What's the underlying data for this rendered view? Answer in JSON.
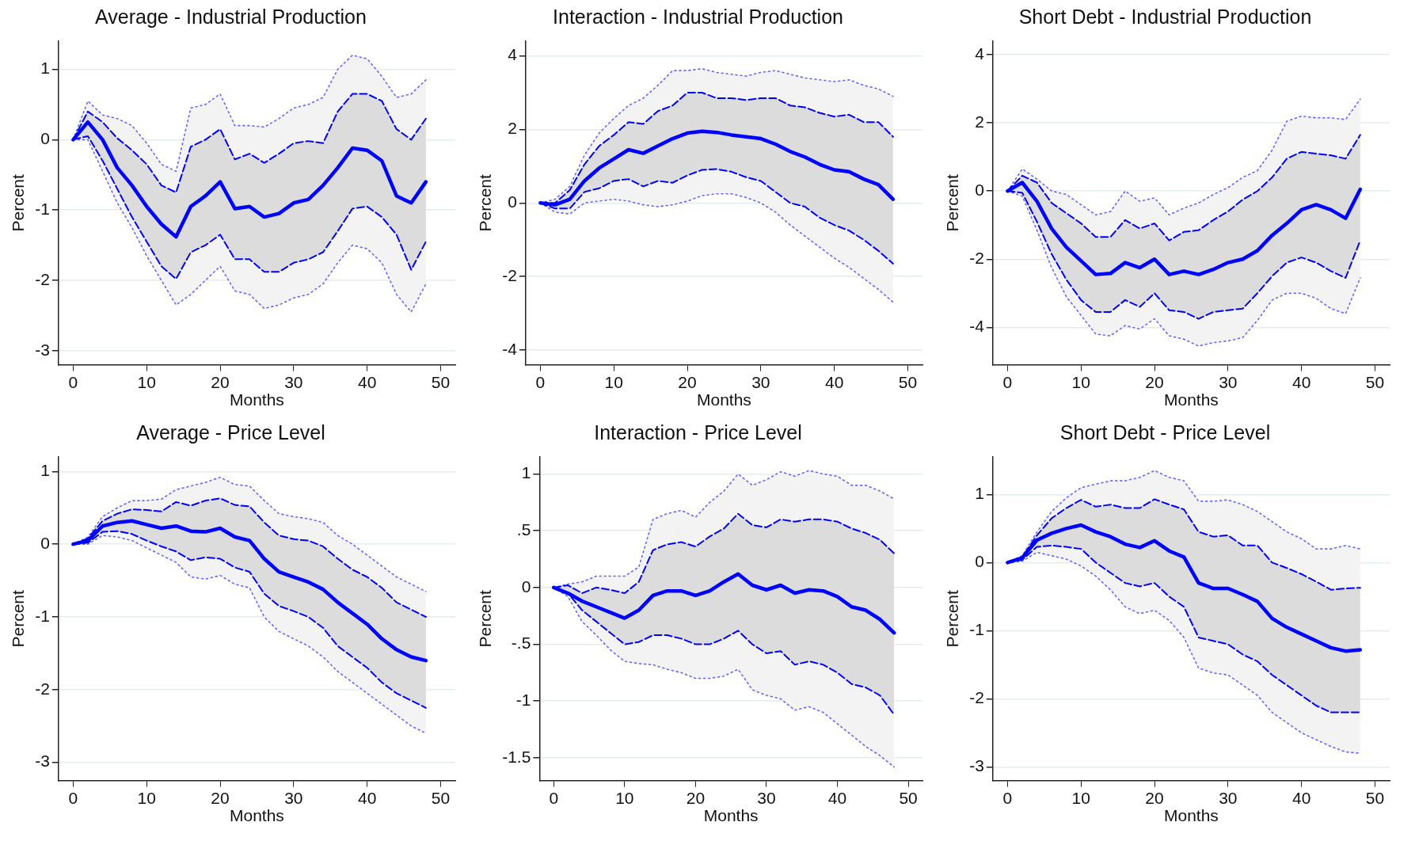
{
  "chart_data": [
    {
      "type": "line",
      "title": "Average - Industrial Production",
      "xlabel": "Months",
      "ylabel": "Percent",
      "grid": "y",
      "x": [
        0,
        2,
        4,
        6,
        8,
        10,
        12,
        14,
        16,
        18,
        20,
        22,
        24,
        26,
        28,
        30,
        32,
        34,
        36,
        38,
        40,
        42,
        44,
        46,
        48
      ],
      "xlim": [
        -2,
        52
      ],
      "xticks": [
        0,
        10,
        20,
        30,
        40,
        50
      ],
      "ylim": [
        -3.2,
        1.4
      ],
      "yticks": [
        -3,
        -2,
        -1,
        0,
        1
      ],
      "series": [
        {
          "color": "#0000ff",
          "line_style": "solid",
          "values": [
            0,
            0.25,
            0.0,
            -0.4,
            -0.65,
            -0.95,
            -1.2,
            -1.38,
            -0.95,
            -0.8,
            -0.6,
            -0.98,
            -0.95,
            -1.1,
            -1.05,
            -0.9,
            -0.85,
            -0.65,
            -0.4,
            -0.12,
            -0.15,
            -0.3,
            -0.8,
            -0.9,
            -0.6
          ],
          "lower": [
            0,
            0.05,
            -0.3,
            -0.7,
            -1.1,
            -1.45,
            -1.8,
            -1.98,
            -1.6,
            -1.5,
            -1.35,
            -1.7,
            -1.7,
            -1.88,
            -1.88,
            -1.75,
            -1.7,
            -1.6,
            -1.3,
            -0.98,
            -0.95,
            -1.1,
            -1.35,
            -1.85,
            -1.45
          ],
          "upper": [
            0,
            0.4,
            0.25,
            0.02,
            -0.15,
            -0.35,
            -0.65,
            -0.75,
            -0.1,
            0.0,
            0.15,
            -0.28,
            -0.2,
            -0.33,
            -0.2,
            -0.05,
            -0.02,
            -0.05,
            0.4,
            0.65,
            0.65,
            0.55,
            0.15,
            0.0,
            0.3
          ]
        },
        {
          "color": "#0000ff",
          "line_style": "dashed",
          "values": [
            0,
            0.4,
            0.25,
            0.02,
            -0.15,
            -0.35,
            -0.65,
            -0.75,
            -0.1,
            0.0,
            0.15,
            -0.28,
            -0.2,
            -0.33,
            -0.2,
            -0.05,
            -0.02,
            -0.05,
            0.4,
            0.65,
            0.65,
            0.55,
            0.15,
            0.0,
            0.3
          ]
        },
        {
          "color": "#0000ff",
          "line_style": "dashed",
          "values": [
            0,
            0.05,
            -0.3,
            -0.7,
            -1.1,
            -1.45,
            -1.8,
            -1.98,
            -1.6,
            -1.5,
            -1.35,
            -1.7,
            -1.7,
            -1.88,
            -1.88,
            -1.75,
            -1.7,
            -1.6,
            -1.3,
            -0.98,
            -0.95,
            -1.1,
            -1.35,
            -1.85,
            -1.45
          ]
        },
        {
          "color": "#6666ff",
          "line_style": "dotted",
          "values": [
            0,
            0.55,
            0.35,
            0.3,
            0.2,
            -0.05,
            -0.35,
            -0.45,
            0.45,
            0.5,
            0.65,
            0.2,
            0.2,
            0.18,
            0.3,
            0.45,
            0.5,
            0.6,
            1.0,
            1.2,
            1.15,
            0.9,
            0.6,
            0.65,
            0.85
          ],
          "lower": [
            0,
            0.0,
            -0.45,
            -0.9,
            -1.25,
            -1.65,
            -2.0,
            -2.35,
            -2.2,
            -2.0,
            -1.8,
            -2.15,
            -2.2,
            -2.4,
            -2.35,
            -2.25,
            -2.2,
            -2.05,
            -1.75,
            -1.5,
            -1.55,
            -1.75,
            -2.2,
            -2.45,
            -2.05
          ],
          "upper": [
            0,
            0.55,
            0.35,
            0.3,
            0.2,
            -0.05,
            -0.35,
            -0.45,
            0.45,
            0.5,
            0.65,
            0.2,
            0.2,
            0.18,
            0.3,
            0.45,
            0.5,
            0.6,
            1.0,
            1.2,
            1.15,
            0.9,
            0.6,
            0.65,
            0.85
          ]
        },
        {
          "color": "#6666ff",
          "line_style": "dotted",
          "values": [
            0,
            0.0,
            -0.45,
            -0.9,
            -1.25,
            -1.65,
            -2.0,
            -2.35,
            -2.2,
            -2.0,
            -1.8,
            -2.15,
            -2.2,
            -2.4,
            -2.35,
            -2.25,
            -2.2,
            -2.05,
            -1.75,
            -1.5,
            -1.55,
            -1.75,
            -2.2,
            -2.45,
            -2.05
          ]
        }
      ]
    },
    {
      "type": "line",
      "title": "Interaction - Industrial Production",
      "xlabel": "Months",
      "ylabel": "Percent",
      "grid": "y",
      "x": [
        0,
        2,
        4,
        6,
        8,
        10,
        12,
        14,
        16,
        18,
        20,
        22,
        24,
        26,
        28,
        30,
        32,
        34,
        36,
        38,
        40,
        42,
        44,
        46,
        48
      ],
      "xlim": [
        -2,
        52
      ],
      "xticks": [
        0,
        10,
        20,
        30,
        40,
        50
      ],
      "ylim": [
        -4.4,
        4.4
      ],
      "yticks": [
        -4,
        -2,
        0,
        2,
        4
      ],
      "series": [
        {
          "color": "#0000ff",
          "line_style": "solid",
          "values": [
            0,
            -0.05,
            0.1,
            0.6,
            0.95,
            1.2,
            1.45,
            1.35,
            1.55,
            1.75,
            1.9,
            1.95,
            1.92,
            1.85,
            1.8,
            1.75,
            1.6,
            1.4,
            1.25,
            1.05,
            0.9,
            0.85,
            0.65,
            0.5,
            0.1
          ],
          "lower": [
            0,
            -0.15,
            -0.15,
            0.3,
            0.4,
            0.6,
            0.65,
            0.45,
            0.6,
            0.55,
            0.75,
            0.9,
            0.92,
            0.85,
            0.7,
            0.6,
            0.3,
            0.0,
            -0.1,
            -0.4,
            -0.6,
            -0.75,
            -1.0,
            -1.3,
            -1.65
          ],
          "upper": [
            0,
            0.0,
            0.35,
            1.05,
            1.55,
            1.85,
            2.2,
            2.15,
            2.5,
            2.65,
            3.0,
            3.0,
            2.85,
            2.85,
            2.8,
            2.85,
            2.85,
            2.65,
            2.6,
            2.45,
            2.35,
            2.4,
            2.2,
            2.2,
            1.8
          ]
        },
        {
          "color": "#0000ff",
          "line_style": "dashed",
          "values": [
            0,
            0.0,
            0.35,
            1.05,
            1.55,
            1.85,
            2.2,
            2.15,
            2.5,
            2.65,
            3.0,
            3.0,
            2.85,
            2.85,
            2.8,
            2.85,
            2.85,
            2.65,
            2.6,
            2.45,
            2.35,
            2.4,
            2.2,
            2.2,
            1.8
          ]
        },
        {
          "color": "#0000ff",
          "line_style": "dashed",
          "values": [
            0,
            -0.15,
            -0.15,
            0.3,
            0.4,
            0.6,
            0.65,
            0.45,
            0.6,
            0.55,
            0.75,
            0.9,
            0.92,
            0.85,
            0.7,
            0.6,
            0.3,
            0.0,
            -0.1,
            -0.4,
            -0.6,
            -0.75,
            -1.0,
            -1.3,
            -1.65
          ]
        },
        {
          "color": "#6666ff",
          "line_style": "dotted",
          "values": [
            0,
            0.1,
            0.45,
            1.3,
            1.9,
            2.3,
            2.65,
            2.85,
            3.2,
            3.6,
            3.6,
            3.65,
            3.55,
            3.5,
            3.45,
            3.55,
            3.6,
            3.5,
            3.4,
            3.35,
            3.3,
            3.35,
            3.2,
            3.1,
            2.9
          ],
          "lower": [
            0,
            -0.25,
            -0.3,
            0.0,
            0.05,
            0.1,
            0.05,
            -0.05,
            -0.1,
            -0.05,
            0.05,
            0.2,
            0.25,
            0.25,
            0.15,
            0.0,
            -0.25,
            -0.6,
            -0.9,
            -1.2,
            -1.5,
            -1.75,
            -2.05,
            -2.35,
            -2.7
          ],
          "upper": [
            0,
            0.1,
            0.45,
            1.3,
            1.9,
            2.3,
            2.65,
            2.85,
            3.2,
            3.6,
            3.6,
            3.65,
            3.55,
            3.5,
            3.45,
            3.55,
            3.6,
            3.5,
            3.4,
            3.35,
            3.3,
            3.35,
            3.2,
            3.1,
            2.9
          ]
        },
        {
          "color": "#6666ff",
          "line_style": "dotted",
          "values": [
            0,
            -0.25,
            -0.3,
            0.0,
            0.05,
            0.1,
            0.05,
            -0.05,
            -0.1,
            -0.05,
            0.05,
            0.2,
            0.25,
            0.25,
            0.15,
            0.0,
            -0.25,
            -0.6,
            -0.9,
            -1.2,
            -1.5,
            -1.75,
            -2.05,
            -2.35,
            -2.7
          ]
        }
      ]
    },
    {
      "type": "line",
      "title": "Short Debt - Industrial Production",
      "xlabel": "Months",
      "ylabel": "Percent",
      "grid": "y",
      "x": [
        0,
        2,
        4,
        6,
        8,
        10,
        12,
        14,
        16,
        18,
        20,
        22,
        24,
        26,
        28,
        30,
        32,
        34,
        36,
        38,
        40,
        42,
        44,
        46,
        48
      ],
      "xlim": [
        -2,
        52
      ],
      "xticks": [
        0,
        10,
        20,
        30,
        40,
        50
      ],
      "ylim": [
        -5.1,
        4.4
      ],
      "yticks": [
        -4,
        -2,
        0,
        2,
        4
      ],
      "series": [
        {
          "color": "#0000ff",
          "line_style": "solid",
          "values": [
            0,
            0.25,
            -0.3,
            -1.1,
            -1.65,
            -2.05,
            -2.45,
            -2.42,
            -2.1,
            -2.25,
            -2.0,
            -2.45,
            -2.35,
            -2.45,
            -2.3,
            -2.1,
            -2.0,
            -1.75,
            -1.3,
            -0.95,
            -0.55,
            -0.4,
            -0.55,
            -0.8,
            0.05
          ],
          "lower": [
            0,
            -0.05,
            -0.9,
            -1.85,
            -2.6,
            -3.2,
            -3.55,
            -3.55,
            -3.2,
            -3.4,
            -3.0,
            -3.5,
            -3.55,
            -3.75,
            -3.55,
            -3.5,
            -3.45,
            -3.0,
            -2.5,
            -2.1,
            -1.95,
            -2.1,
            -2.35,
            -2.55,
            -1.45
          ],
          "upper": [
            0,
            0.45,
            0.25,
            -0.35,
            -0.65,
            -0.95,
            -1.35,
            -1.35,
            -0.85,
            -1.1,
            -0.95,
            -1.45,
            -1.2,
            -1.15,
            -0.85,
            -0.6,
            -0.25,
            0.0,
            0.4,
            0.95,
            1.15,
            1.1,
            1.05,
            0.95,
            1.65
          ]
        },
        {
          "color": "#0000ff",
          "line_style": "dashed",
          "values": [
            0,
            0.45,
            0.25,
            -0.35,
            -0.65,
            -0.95,
            -1.35,
            -1.35,
            -0.85,
            -1.1,
            -0.95,
            -1.45,
            -1.2,
            -1.15,
            -0.85,
            -0.6,
            -0.25,
            0.0,
            0.4,
            0.95,
            1.15,
            1.1,
            1.05,
            0.95,
            1.65
          ]
        },
        {
          "color": "#0000ff",
          "line_style": "dashed",
          "values": [
            0,
            -0.05,
            -0.9,
            -1.85,
            -2.6,
            -3.2,
            -3.55,
            -3.55,
            -3.2,
            -3.4,
            -3.0,
            -3.5,
            -3.55,
            -3.75,
            -3.55,
            -3.5,
            -3.45,
            -3.0,
            -2.5,
            -2.1,
            -1.95,
            -2.1,
            -2.35,
            -2.55,
            -1.45
          ]
        },
        {
          "color": "#6666ff",
          "line_style": "dotted",
          "values": [
            0,
            0.65,
            0.35,
            0.0,
            -0.1,
            -0.4,
            -0.7,
            -0.6,
            0.0,
            -0.3,
            -0.2,
            -0.7,
            -0.5,
            -0.35,
            -0.1,
            0.1,
            0.4,
            0.6,
            1.2,
            2.05,
            2.2,
            2.15,
            2.15,
            2.1,
            2.7
          ],
          "lower": [
            0,
            -0.15,
            -1.15,
            -2.25,
            -3.1,
            -3.65,
            -4.2,
            -4.25,
            -3.95,
            -4.05,
            -3.75,
            -4.25,
            -4.35,
            -4.55,
            -4.45,
            -4.4,
            -4.3,
            -3.8,
            -3.2,
            -3.0,
            -3.0,
            -3.15,
            -3.45,
            -3.6,
            -2.55
          ],
          "upper": [
            0,
            0.65,
            0.35,
            0.0,
            -0.1,
            -0.4,
            -0.7,
            -0.6,
            0.0,
            -0.3,
            -0.2,
            -0.7,
            -0.5,
            -0.35,
            -0.1,
            0.1,
            0.4,
            0.6,
            1.2,
            2.05,
            2.2,
            2.15,
            2.15,
            2.1,
            2.7
          ]
        },
        {
          "color": "#6666ff",
          "line_style": "dotted",
          "values": [
            0,
            -0.15,
            -1.15,
            -2.25,
            -3.1,
            -3.65,
            -4.2,
            -4.25,
            -3.95,
            -4.05,
            -3.75,
            -4.25,
            -4.35,
            -4.55,
            -4.45,
            -4.4,
            -4.3,
            -3.8,
            -3.2,
            -3.0,
            -3.0,
            -3.15,
            -3.45,
            -3.6,
            -2.55
          ]
        }
      ]
    },
    {
      "type": "line",
      "title": "Average - Price Level",
      "xlabel": "Months",
      "ylabel": "Percent",
      "grid": "y",
      "x": [
        0,
        2,
        4,
        6,
        8,
        10,
        12,
        14,
        16,
        18,
        20,
        22,
        24,
        26,
        28,
        30,
        32,
        34,
        36,
        38,
        40,
        42,
        44,
        46,
        48
      ],
      "xlim": [
        -2,
        52
      ],
      "xticks": [
        0,
        10,
        20,
        30,
        40,
        50
      ],
      "ylim": [
        -3.25,
        1.2
      ],
      "yticks": [
        -3,
        -2,
        -1,
        0,
        1
      ],
      "series": [
        {
          "color": "#0000ff",
          "line_style": "solid",
          "values": [
            0,
            0.05,
            0.25,
            0.3,
            0.32,
            0.27,
            0.22,
            0.25,
            0.18,
            0.17,
            0.22,
            0.1,
            0.05,
            -0.2,
            -0.38,
            -0.45,
            -0.52,
            -0.62,
            -0.8,
            -0.95,
            -1.1,
            -1.3,
            -1.45,
            -1.55,
            -1.6
          ],
          "lower": [
            0,
            0.02,
            0.17,
            0.18,
            0.14,
            0.05,
            -0.03,
            -0.1,
            -0.22,
            -0.18,
            -0.2,
            -0.32,
            -0.38,
            -0.68,
            -0.85,
            -0.92,
            -1.0,
            -1.15,
            -1.4,
            -1.55,
            -1.7,
            -1.9,
            -2.05,
            -2.15,
            -2.25
          ],
          "upper": [
            0,
            0.08,
            0.32,
            0.42,
            0.48,
            0.47,
            0.45,
            0.58,
            0.53,
            0.6,
            0.63,
            0.54,
            0.52,
            0.3,
            0.12,
            0.07,
            0.05,
            -0.03,
            -0.2,
            -0.35,
            -0.45,
            -0.6,
            -0.8,
            -0.9,
            -1.0
          ]
        },
        {
          "color": "#0000ff",
          "line_style": "dashed",
          "values": [
            0,
            0.08,
            0.32,
            0.42,
            0.48,
            0.47,
            0.45,
            0.58,
            0.53,
            0.6,
            0.63,
            0.54,
            0.52,
            0.3,
            0.12,
            0.07,
            0.05,
            -0.03,
            -0.2,
            -0.35,
            -0.45,
            -0.6,
            -0.8,
            -0.9,
            -1.0
          ]
        },
        {
          "color": "#0000ff",
          "line_style": "dashed",
          "values": [
            0,
            0.02,
            0.17,
            0.18,
            0.14,
            0.05,
            -0.03,
            -0.1,
            -0.22,
            -0.18,
            -0.2,
            -0.32,
            -0.38,
            -0.68,
            -0.85,
            -0.92,
            -1.0,
            -1.15,
            -1.4,
            -1.55,
            -1.7,
            -1.9,
            -2.05,
            -2.15,
            -2.25
          ]
        },
        {
          "color": "#6666ff",
          "line_style": "dotted",
          "values": [
            0,
            0.1,
            0.38,
            0.5,
            0.6,
            0.6,
            0.62,
            0.75,
            0.8,
            0.85,
            0.92,
            0.82,
            0.8,
            0.6,
            0.42,
            0.38,
            0.35,
            0.3,
            0.12,
            0.0,
            -0.15,
            -0.3,
            -0.45,
            -0.55,
            -0.65
          ],
          "lower": [
            0,
            0.0,
            0.12,
            0.1,
            0.05,
            -0.05,
            -0.15,
            -0.25,
            -0.45,
            -0.48,
            -0.43,
            -0.55,
            -0.6,
            -1.0,
            -1.2,
            -1.3,
            -1.4,
            -1.55,
            -1.75,
            -1.9,
            -2.05,
            -2.2,
            -2.35,
            -2.5,
            -2.6
          ],
          "upper": [
            0,
            0.1,
            0.38,
            0.5,
            0.6,
            0.6,
            0.62,
            0.75,
            0.8,
            0.85,
            0.92,
            0.82,
            0.8,
            0.6,
            0.42,
            0.38,
            0.35,
            0.3,
            0.12,
            0.0,
            -0.15,
            -0.3,
            -0.45,
            -0.55,
            -0.65
          ]
        },
        {
          "color": "#6666ff",
          "line_style": "dotted",
          "values": [
            0,
            0.0,
            0.12,
            0.1,
            0.05,
            -0.05,
            -0.15,
            -0.25,
            -0.45,
            -0.48,
            -0.43,
            -0.55,
            -0.6,
            -1.0,
            -1.2,
            -1.3,
            -1.4,
            -1.55,
            -1.75,
            -1.9,
            -2.05,
            -2.2,
            -2.35,
            -2.5,
            -2.6
          ]
        }
      ]
    },
    {
      "type": "line",
      "title": "Interaction - Price Level",
      "xlabel": "Months",
      "ylabel": "Percent",
      "grid": "y",
      "x": [
        0,
        2,
        4,
        6,
        8,
        10,
        12,
        14,
        16,
        18,
        20,
        22,
        24,
        26,
        28,
        30,
        32,
        34,
        36,
        38,
        40,
        42,
        44,
        46,
        48
      ],
      "xlim": [
        -2,
        52
      ],
      "xticks": [
        0,
        10,
        20,
        30,
        40,
        50
      ],
      "ylim": [
        -1.7,
        1.15
      ],
      "yticks": [
        {
          "value": -1.5,
          "label": "-1.5"
        },
        -1,
        {
          "value": -0.5,
          "label": "-.5"
        },
        0,
        {
          "value": 0.5,
          "label": ".5"
        },
        1
      ],
      "series": [
        {
          "color": "#0000ff",
          "line_style": "solid",
          "values": [
            0,
            -0.05,
            -0.12,
            -0.17,
            -0.22,
            -0.27,
            -0.2,
            -0.07,
            -0.03,
            -0.03,
            -0.07,
            -0.03,
            0.05,
            0.12,
            0.02,
            -0.02,
            0.02,
            -0.05,
            -0.02,
            -0.03,
            -0.08,
            -0.17,
            -0.2,
            -0.28,
            -0.4
          ],
          "lower": [
            0,
            -0.05,
            -0.2,
            -0.3,
            -0.4,
            -0.5,
            -0.48,
            -0.42,
            -0.42,
            -0.45,
            -0.5,
            -0.5,
            -0.45,
            -0.38,
            -0.5,
            -0.58,
            -0.56,
            -0.68,
            -0.65,
            -0.68,
            -0.75,
            -0.85,
            -0.88,
            -0.95,
            -1.12
          ],
          "upper": [
            0,
            0.02,
            -0.05,
            0.0,
            -0.02,
            -0.05,
            0.05,
            0.33,
            0.38,
            0.4,
            0.36,
            0.45,
            0.52,
            0.65,
            0.55,
            0.53,
            0.6,
            0.58,
            0.6,
            0.6,
            0.58,
            0.52,
            0.48,
            0.42,
            0.3
          ]
        },
        {
          "color": "#0000ff",
          "line_style": "dashed",
          "values": [
            0,
            0.02,
            -0.05,
            0.0,
            -0.02,
            -0.05,
            0.05,
            0.33,
            0.38,
            0.4,
            0.36,
            0.45,
            0.52,
            0.65,
            0.55,
            0.53,
            0.6,
            0.58,
            0.6,
            0.6,
            0.58,
            0.52,
            0.48,
            0.42,
            0.3
          ]
        },
        {
          "color": "#0000ff",
          "line_style": "dashed",
          "values": [
            0,
            -0.05,
            -0.2,
            -0.3,
            -0.4,
            -0.5,
            -0.48,
            -0.42,
            -0.42,
            -0.45,
            -0.5,
            -0.5,
            -0.45,
            -0.38,
            -0.5,
            -0.58,
            -0.56,
            -0.68,
            -0.65,
            -0.68,
            -0.75,
            -0.85,
            -0.88,
            -0.95,
            -1.12
          ]
        },
        {
          "color": "#6666ff",
          "line_style": "dotted",
          "values": [
            0,
            0.03,
            0.05,
            0.1,
            0.1,
            0.1,
            0.18,
            0.6,
            0.65,
            0.68,
            0.62,
            0.75,
            0.85,
            1.0,
            0.9,
            0.95,
            1.02,
            0.98,
            1.03,
            1.0,
            0.98,
            0.9,
            0.9,
            0.85,
            0.78
          ],
          "lower": [
            0,
            -0.08,
            -0.3,
            -0.42,
            -0.55,
            -0.65,
            -0.67,
            -0.68,
            -0.72,
            -0.75,
            -0.8,
            -0.8,
            -0.78,
            -0.72,
            -0.9,
            -0.95,
            -0.98,
            -1.08,
            -1.05,
            -1.1,
            -1.2,
            -1.3,
            -1.4,
            -1.48,
            -1.58
          ],
          "upper": [
            0,
            0.03,
            0.05,
            0.1,
            0.1,
            0.1,
            0.18,
            0.6,
            0.65,
            0.68,
            0.62,
            0.75,
            0.85,
            1.0,
            0.9,
            0.95,
            1.02,
            0.98,
            1.03,
            1.0,
            0.98,
            0.9,
            0.9,
            0.85,
            0.78
          ]
        },
        {
          "color": "#6666ff",
          "line_style": "dotted",
          "values": [
            0,
            -0.08,
            -0.3,
            -0.42,
            -0.55,
            -0.65,
            -0.67,
            -0.68,
            -0.72,
            -0.75,
            -0.8,
            -0.8,
            -0.78,
            -0.72,
            -0.9,
            -0.95,
            -0.98,
            -1.08,
            -1.05,
            -1.1,
            -1.2,
            -1.3,
            -1.4,
            -1.48,
            -1.58
          ]
        }
      ]
    },
    {
      "type": "line",
      "title": "Short Debt - Price Level",
      "xlabel": "Months",
      "ylabel": "Percent",
      "grid": "y",
      "x": [
        0,
        2,
        4,
        6,
        8,
        10,
        12,
        14,
        16,
        18,
        20,
        22,
        24,
        26,
        28,
        30,
        32,
        34,
        36,
        38,
        40,
        42,
        44,
        46,
        48
      ],
      "xlim": [
        -2,
        52
      ],
      "xticks": [
        0,
        10,
        20,
        30,
        40,
        50
      ],
      "ylim": [
        -3.2,
        1.55
      ],
      "yticks": [
        -3,
        -2,
        -1,
        0,
        1
      ],
      "series": [
        {
          "color": "#0000ff",
          "line_style": "solid",
          "values": [
            0,
            0.07,
            0.33,
            0.43,
            0.5,
            0.55,
            0.45,
            0.38,
            0.27,
            0.22,
            0.32,
            0.17,
            0.08,
            -0.3,
            -0.38,
            -0.38,
            -0.47,
            -0.57,
            -0.82,
            -0.95,
            -1.05,
            -1.15,
            -1.25,
            -1.3,
            -1.28
          ],
          "lower": [
            0,
            0.04,
            0.23,
            0.25,
            0.23,
            0.2,
            0.0,
            -0.15,
            -0.3,
            -0.35,
            -0.3,
            -0.5,
            -0.65,
            -1.1,
            -1.15,
            -1.2,
            -1.35,
            -1.45,
            -1.65,
            -1.8,
            -1.95,
            -2.1,
            -2.2,
            -2.2,
            -2.2
          ],
          "upper": [
            0,
            0.08,
            0.4,
            0.65,
            0.8,
            0.92,
            0.82,
            0.85,
            0.8,
            0.8,
            0.93,
            0.85,
            0.78,
            0.45,
            0.38,
            0.4,
            0.25,
            0.25,
            0.0,
            -0.08,
            -0.17,
            -0.28,
            -0.4,
            -0.38,
            -0.37
          ]
        },
        {
          "color": "#0000ff",
          "line_style": "dashed",
          "values": [
            0,
            0.08,
            0.4,
            0.65,
            0.8,
            0.92,
            0.82,
            0.85,
            0.8,
            0.8,
            0.93,
            0.85,
            0.78,
            0.45,
            0.38,
            0.4,
            0.25,
            0.25,
            0.0,
            -0.08,
            -0.17,
            -0.28,
            -0.4,
            -0.38,
            -0.37
          ]
        },
        {
          "color": "#0000ff",
          "line_style": "dashed",
          "values": [
            0,
            0.04,
            0.23,
            0.25,
            0.23,
            0.2,
            0.0,
            -0.15,
            -0.3,
            -0.35,
            -0.3,
            -0.5,
            -0.65,
            -1.1,
            -1.15,
            -1.2,
            -1.35,
            -1.45,
            -1.65,
            -1.8,
            -1.95,
            -2.1,
            -2.2,
            -2.2,
            -2.2
          ]
        },
        {
          "color": "#6666ff",
          "line_style": "dotted",
          "values": [
            0,
            0.1,
            0.45,
            0.75,
            0.95,
            1.1,
            1.15,
            1.2,
            1.2,
            1.25,
            1.35,
            1.25,
            1.2,
            0.9,
            0.9,
            0.92,
            0.85,
            0.75,
            0.6,
            0.45,
            0.35,
            0.2,
            0.2,
            0.25,
            0.2
          ],
          "lower": [
            0,
            0.02,
            0.15,
            0.1,
            0.05,
            -0.05,
            -0.2,
            -0.4,
            -0.65,
            -0.75,
            -0.7,
            -0.85,
            -1.1,
            -1.55,
            -1.62,
            -1.65,
            -1.8,
            -1.95,
            -2.2,
            -2.35,
            -2.5,
            -2.6,
            -2.7,
            -2.78,
            -2.8
          ],
          "upper": [
            0,
            0.1,
            0.45,
            0.75,
            0.95,
            1.1,
            1.15,
            1.2,
            1.2,
            1.25,
            1.35,
            1.25,
            1.2,
            0.9,
            0.9,
            0.92,
            0.85,
            0.75,
            0.6,
            0.45,
            0.35,
            0.2,
            0.2,
            0.25,
            0.2
          ]
        },
        {
          "color": "#6666ff",
          "line_style": "dotted",
          "values": [
            0,
            0.02,
            0.15,
            0.1,
            0.05,
            -0.05,
            -0.2,
            -0.4,
            -0.65,
            -0.75,
            -0.7,
            -0.85,
            -1.1,
            -1.55,
            -1.62,
            -1.65,
            -1.8,
            -1.95,
            -2.2,
            -2.35,
            -2.5,
            -2.6,
            -2.7,
            -2.78,
            -2.8
          ]
        }
      ]
    }
  ]
}
